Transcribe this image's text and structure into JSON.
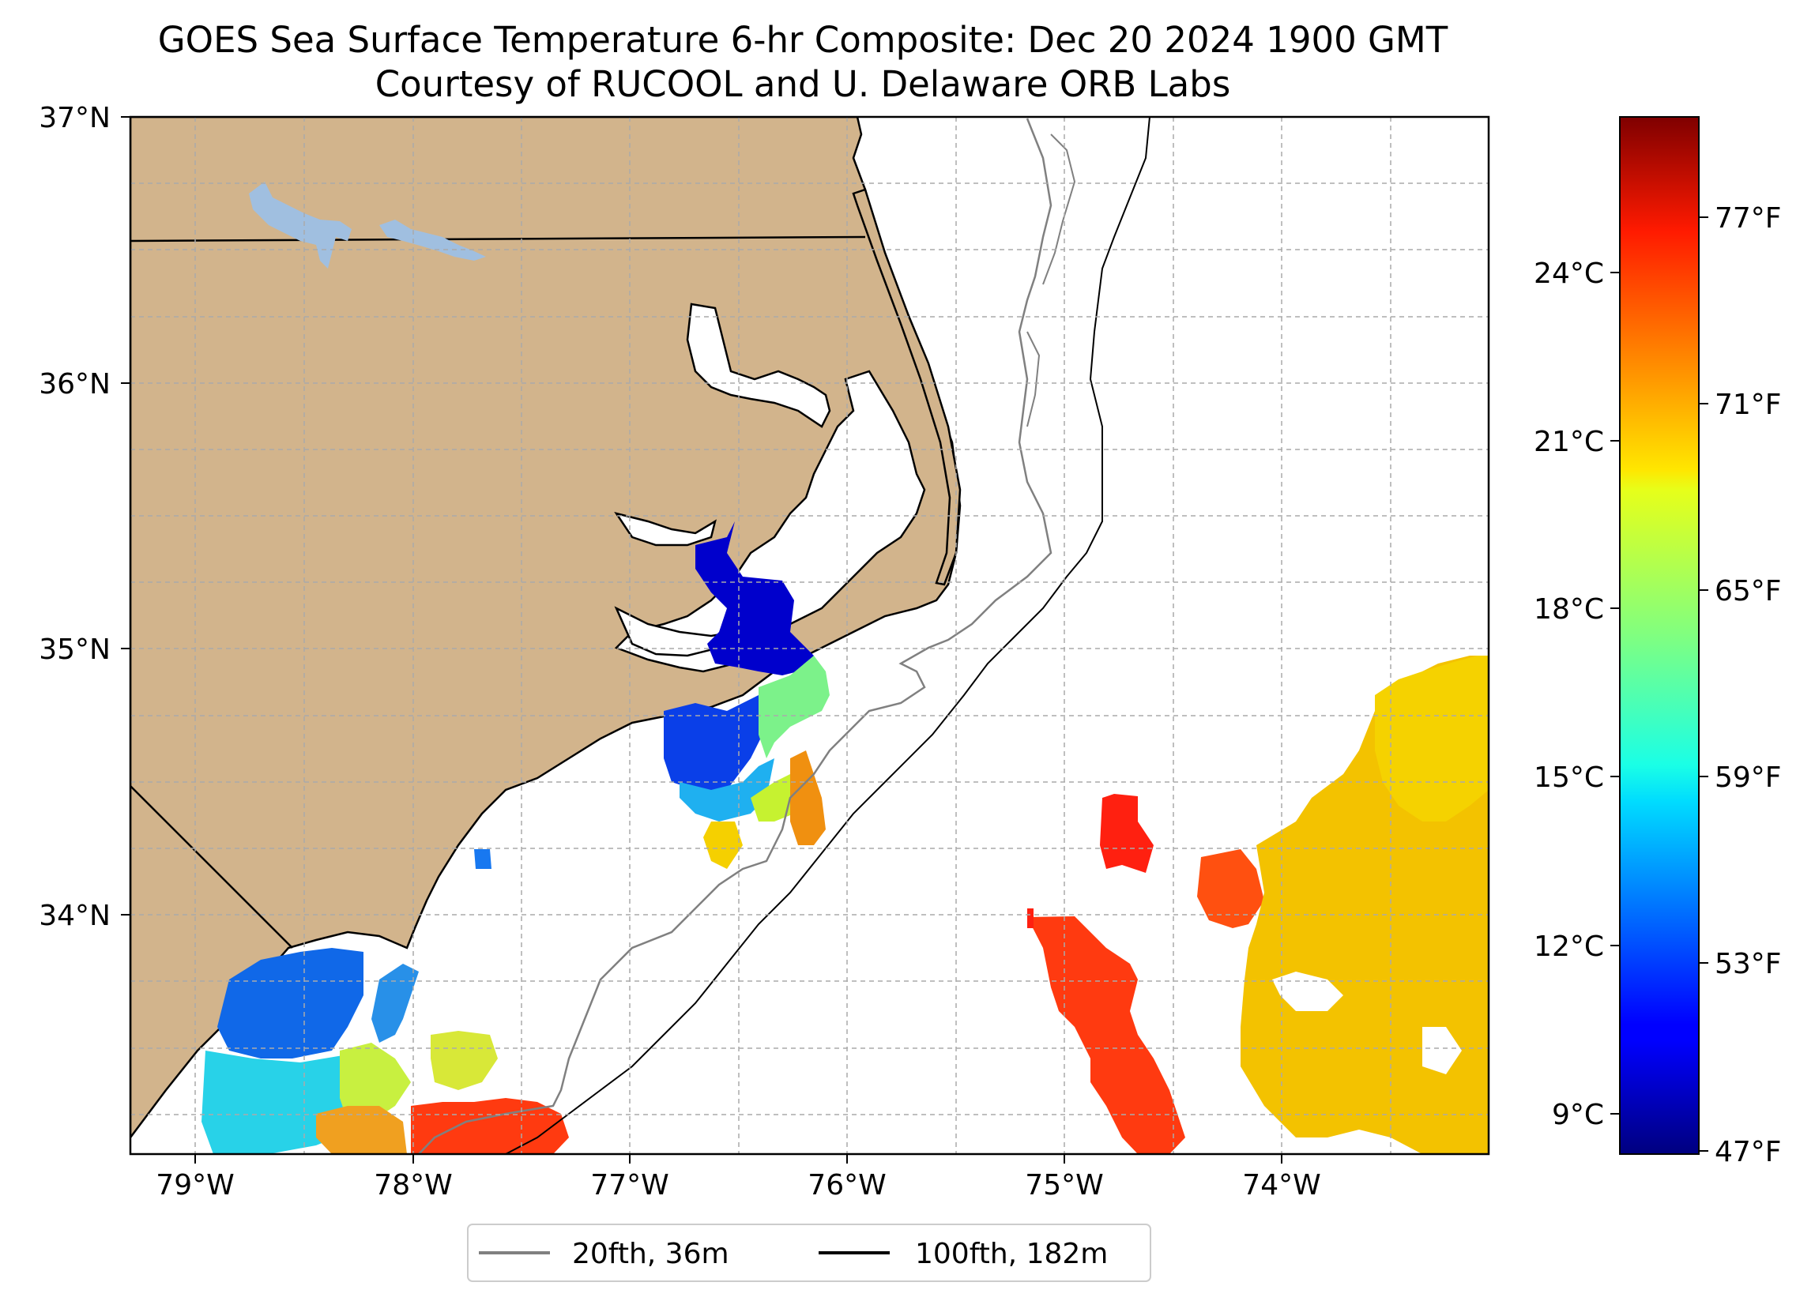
{
  "title": {
    "line1": "GOES Sea Surface Temperature 6-hr Composite: Dec 20 2024 1900 GMT",
    "line2": "Courtesy of RUCOOL and U. Delaware ORB Labs"
  },
  "map": {
    "lat_range": [
      33.1,
      37.0
    ],
    "lon_range": [
      -79.3,
      -73.1
    ],
    "lat_ticks": [
      "37°N",
      "36°N",
      "35°N",
      "34°N"
    ],
    "lon_ticks": [
      "79°W",
      "78°W",
      "77°W",
      "76°W",
      "75°W",
      "74°W"
    ],
    "land_color": "#d2b48c",
    "lake_color": "#a0bfe0",
    "grid_color": "#aaaaaa"
  },
  "colorbar": {
    "celsius_ticks": [
      "24°C",
      "21°C",
      "18°C",
      "15°C",
      "12°C",
      "9°C"
    ],
    "fahrenheit_ticks": [
      "77°F",
      "71°F",
      "65°F",
      "59°F",
      "53°F",
      "47°F"
    ],
    "colormap": "jet"
  },
  "legend": {
    "items": [
      {
        "label": "20fth, 36m",
        "color": "#808080"
      },
      {
        "label": "100fth, 182m",
        "color": "#000000"
      }
    ]
  }
}
